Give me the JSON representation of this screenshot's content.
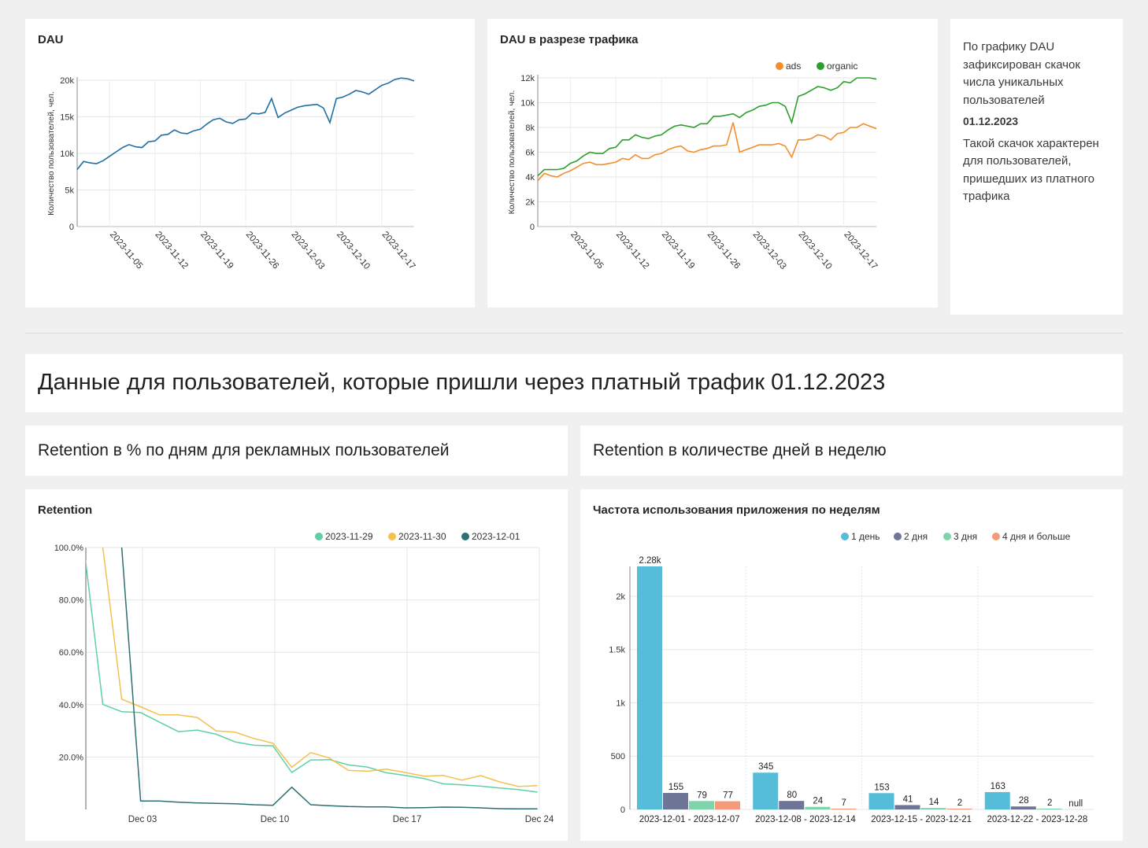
{
  "dau_card": {
    "title": "DAU",
    "chart_data": {
      "type": "line",
      "title": "DAU",
      "ylabel": "Количество пользователей, чел.",
      "ylim": [
        0,
        20000
      ],
      "yticks": [
        0,
        5000,
        10000,
        15000,
        20000
      ],
      "yticklabels": [
        "0",
        "5k",
        "10k",
        "15k",
        "20k"
      ],
      "xstart": "2023-10-31",
      "xticks": [
        "2023-11-05",
        "2023-11-12",
        "2023-11-19",
        "2023-11-26",
        "2023-12-03",
        "2023-12-10",
        "2023-12-17"
      ],
      "grid": true,
      "series": [
        {
          "color": "#1f6fa3",
          "values": [
            7800,
            8900,
            8700,
            8600,
            9000,
            9600,
            10200,
            10800,
            11200,
            10900,
            10800,
            11600,
            11700,
            12500,
            12600,
            13200,
            12800,
            12700,
            13100,
            13300,
            14000,
            14600,
            14800,
            14300,
            14100,
            14600,
            14700,
            15500,
            15400,
            15600,
            17500,
            14900,
            15500,
            15900,
            16300,
            16500,
            16600,
            16700,
            16200,
            14200,
            17500,
            17700,
            18100,
            18600,
            18400,
            18100,
            18700,
            19300,
            19600,
            20100,
            20300,
            20200,
            19900
          ]
        }
      ]
    }
  },
  "dau_traffic_card": {
    "title": "DAU в разрезе трафика",
    "chart_data": {
      "type": "line",
      "title": "DAU в разрезе трафика",
      "ylabel": "Количество пользователей, чел.",
      "ylim": [
        0,
        12000
      ],
      "yticks": [
        0,
        2000,
        4000,
        6000,
        8000,
        10000,
        12000
      ],
      "yticklabels": [
        "0",
        "2k",
        "4k",
        "6k",
        "8k",
        "10k",
        "12k"
      ],
      "xstart": "2023-10-31",
      "xticks": [
        "2023-11-05",
        "2023-11-12",
        "2023-11-19",
        "2023-11-26",
        "2023-12-03",
        "2023-12-10",
        "2023-12-17"
      ],
      "legend": "top-right",
      "grid": true,
      "series": [
        {
          "name": "ads",
          "color": "#f28e2b",
          "values": [
            3700,
            4300,
            4100,
            4000,
            4300,
            4500,
            4800,
            5100,
            5200,
            5000,
            5000,
            5100,
            5200,
            5500,
            5400,
            5800,
            5500,
            5500,
            5800,
            5900,
            6200,
            6400,
            6500,
            6100,
            6000,
            6200,
            6300,
            6500,
            6500,
            6600,
            8400,
            6000,
            6200,
            6400,
            6600,
            6600,
            6600,
            6700,
            6500,
            5600,
            7000,
            7000,
            7100,
            7400,
            7300,
            7000,
            7500,
            7600,
            8000,
            8000,
            8300,
            8100,
            7900
          ]
        },
        {
          "name": "organic",
          "color": "#2ca02c",
          "values": [
            4100,
            4600,
            4600,
            4600,
            4700,
            5100,
            5300,
            5700,
            6000,
            5900,
            5900,
            6300,
            6400,
            7000,
            7000,
            7400,
            7200,
            7100,
            7300,
            7400,
            7800,
            8100,
            8200,
            8100,
            8000,
            8300,
            8300,
            8900,
            8900,
            9000,
            9100,
            8800,
            9200,
            9400,
            9700,
            9800,
            10000,
            10000,
            9700,
            8400,
            10500,
            10700,
            11000,
            11300,
            11200,
            11000,
            11200,
            11700,
            11600,
            12000,
            12000,
            12000,
            11900
          ]
        }
      ]
    }
  },
  "note": {
    "line1": "По графику DAU зафиксирован скачок числа уникальных пользователей",
    "date": "01.12.2023",
    "line2": "Такой скачок характерен для пользователей, пришедших из платного трафика"
  },
  "section_header": "Данные для пользователей, которые пришли через платный трафик 01.12.2023",
  "subheader_left": "Retention в % по дням для рекламных пользователей",
  "subheader_right": "Retention в количестве дней в неделю",
  "retention_card": {
    "title": "Retention",
    "chart_data": {
      "type": "line",
      "title": "Retention",
      "ylim": [
        0,
        100
      ],
      "yticks": [
        20,
        40,
        60,
        80,
        100
      ],
      "yticklabels": [
        "20.0%",
        "40.0%",
        "60.0%",
        "80.0%",
        "100.0%"
      ],
      "xticks": [
        "Dec 03",
        "Dec 10",
        "Dec 17",
        "Dec 24"
      ],
      "xtick_positions": [
        3,
        10,
        17,
        24
      ],
      "legend": "top-right",
      "grid": true,
      "series": [
        {
          "name": "2023-11-29",
          "color": "#5fd0a4",
          "x": [
            -0.1,
            0.9,
            1.9,
            2.9,
            3.9,
            4.9,
            5.9,
            6.9,
            7.9,
            8.9,
            9.9,
            10.9,
            11.9,
            12.9,
            13.9,
            14.9,
            15.9,
            16.9,
            17.9,
            18.9,
            19.9,
            20.9,
            21.9,
            22.9,
            23.9
          ],
          "values": [
            100,
            40.1,
            37.3,
            37.0,
            33.3,
            29.7,
            30.3,
            28.7,
            25.8,
            24.5,
            24.3,
            14.1,
            18.9,
            19.0,
            17.0,
            16.2,
            14.0,
            13.0,
            11.8,
            9.8,
            9.4,
            8.9,
            8.2,
            7.6,
            6.6
          ]
        },
        {
          "name": "2023-11-30",
          "color": "#f2c14e",
          "x": [
            0.9,
            1.9,
            2.9,
            3.9,
            4.9,
            5.9,
            6.9,
            7.9,
            8.9,
            9.9,
            10.9,
            11.9,
            12.9,
            13.9,
            14.9,
            15.9,
            16.9,
            17.9,
            18.9,
            19.9,
            20.9,
            21.9,
            22.9,
            23.9
          ],
          "values": [
            100,
            42.1,
            39.2,
            36.1,
            36.1,
            35.1,
            30.0,
            29.5,
            27.1,
            25.3,
            16.1,
            21.7,
            19.6,
            14.9,
            14.6,
            15.4,
            14.1,
            12.7,
            13.0,
            11.2,
            12.9,
            10.5,
            8.8,
            9.1
          ]
        },
        {
          "name": "2023-12-01",
          "color": "#2d6f73",
          "x": [
            1.9,
            2.9,
            3.9,
            4.9,
            5.9,
            6.9,
            7.9,
            8.9,
            9.9,
            10.9,
            11.9,
            12.9,
            13.9,
            14.9,
            15.9,
            16.9,
            17.9,
            18.9,
            19.9,
            20.9,
            21.9,
            22.9,
            23.9
          ],
          "values": [
            100,
            3.2,
            3.2,
            2.8,
            2.5,
            2.3,
            2.2,
            1.8,
            1.6,
            8.5,
            1.8,
            1.4,
            1.1,
            1.0,
            1.0,
            0.6,
            0.7,
            0.9,
            0.8,
            0.6,
            0.3,
            0.2,
            0.2
          ]
        }
      ]
    }
  },
  "frequency_card": {
    "title": "Частота использования приложения по неделям",
    "chart_data": {
      "type": "bar",
      "title": "Частота использования приложения по неделям",
      "categories": [
        "2023-12-01 - 2023-12-07",
        "2023-12-08 - 2023-12-14",
        "2023-12-15 - 2023-12-21",
        "2023-12-22 - 2023-12-28"
      ],
      "ylim": [
        0,
        2280
      ],
      "yticks": [
        0,
        500,
        1000,
        1500,
        2000
      ],
      "yticklabels": [
        "0",
        "500",
        "1k",
        "1.5k",
        "2k"
      ],
      "legend": "top-right",
      "grid": true,
      "series": [
        {
          "name": "1 день",
          "color": "#56bdd9",
          "values": [
            2280,
            345,
            153,
            163
          ],
          "labels": [
            "2.28k",
            "345",
            "153",
            "163"
          ]
        },
        {
          "name": "2 дня",
          "color": "#6e7596",
          "values": [
            155,
            80,
            41,
            28
          ],
          "labels": [
            "155",
            "80",
            "41",
            "28"
          ]
        },
        {
          "name": "3 дня",
          "color": "#7fd4ab",
          "values": [
            79,
            24,
            14,
            2
          ],
          "labels": [
            "79",
            "24",
            "14",
            "2"
          ]
        },
        {
          "name": "4 дня и больше",
          "color": "#f59a7a",
          "values": [
            77,
            7,
            2,
            null
          ],
          "labels": [
            "77",
            "7",
            "2",
            "null"
          ]
        }
      ]
    }
  }
}
